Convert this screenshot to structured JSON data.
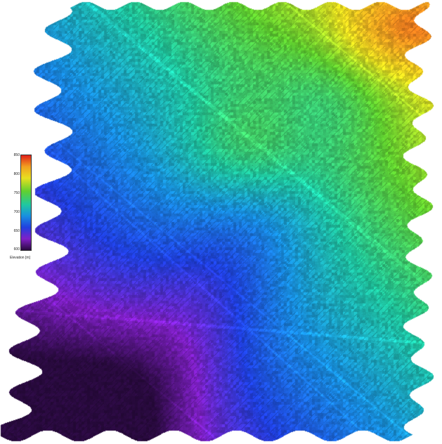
{
  "legend": {
    "title": "Elevation [m]",
    "ticks": [
      "850",
      "800",
      "750",
      "700",
      "650",
      "600"
    ],
    "colors": [
      "#e0201a",
      "#f2a020",
      "#e8e020",
      "#60d030",
      "#20c8a0",
      "#1890e0",
      "#2040e0",
      "#8020c8",
      "#2a0a40"
    ]
  }
}
